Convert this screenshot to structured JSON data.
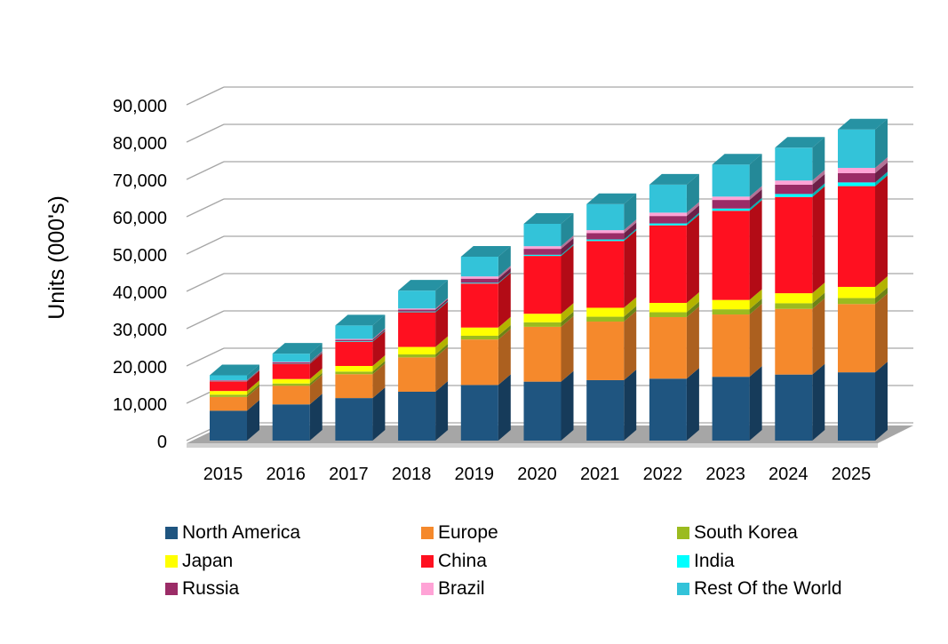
{
  "chart_data": {
    "type": "bar",
    "stacked": true,
    "three_d": true,
    "ylabel": "Units (000's)",
    "ylim": [
      0,
      90000
    ],
    "y_ticks": [
      "0",
      "10,000",
      "20,000",
      "30,000",
      "40,000",
      "50,000",
      "60,000",
      "70,000",
      "80,000",
      "90,000"
    ],
    "grid": true,
    "legend_position": "bottom",
    "categories": [
      "2015",
      "2016",
      "2017",
      "2018",
      "2019",
      "2020",
      "2021",
      "2022",
      "2023",
      "2024",
      "2025"
    ],
    "series": [
      {
        "name": "North America",
        "color": "#1f5580",
        "values": [
          8000,
          9700,
          11400,
          13100,
          14900,
          15800,
          16200,
          16600,
          17100,
          17700,
          18300
        ]
      },
      {
        "name": "Europe",
        "color": "#f5892c",
        "values": [
          3700,
          5000,
          6400,
          9200,
          12200,
          14700,
          15700,
          16500,
          16700,
          17600,
          18300
        ]
      },
      {
        "name": "South Korea",
        "color": "#9bbb1f",
        "values": [
          600,
          600,
          700,
          800,
          1000,
          1200,
          1300,
          1300,
          1400,
          1500,
          1600
        ]
      },
      {
        "name": "Japan",
        "color": "#ffff00",
        "values": [
          1000,
          1200,
          1500,
          2000,
          2200,
          2300,
          2400,
          2500,
          2500,
          2700,
          3000
        ]
      },
      {
        "name": "China",
        "color": "#ff1020",
        "values": [
          2600,
          4100,
          6500,
          9300,
          11800,
          15500,
          17900,
          20800,
          23900,
          25800,
          27000
        ]
      },
      {
        "name": "India",
        "color": "#00ffff",
        "values": [
          50,
          100,
          150,
          200,
          200,
          300,
          400,
          500,
          600,
          800,
          1000
        ]
      },
      {
        "name": "Russia",
        "color": "#9b2c67",
        "values": [
          150,
          250,
          350,
          500,
          1100,
          1600,
          1700,
          2000,
          2300,
          2500,
          2500
        ]
      },
      {
        "name": "Brazil",
        "color": "#ffa3d6",
        "values": [
          100,
          150,
          250,
          300,
          600,
          700,
          800,
          900,
          900,
          1100,
          1400
        ]
      },
      {
        "name": "Rest Of the World",
        "color": "#33c3d9",
        "values": [
          1300,
          2200,
          3600,
          4800,
          5300,
          6000,
          7000,
          7500,
          8600,
          8800,
          10300
        ]
      }
    ]
  }
}
